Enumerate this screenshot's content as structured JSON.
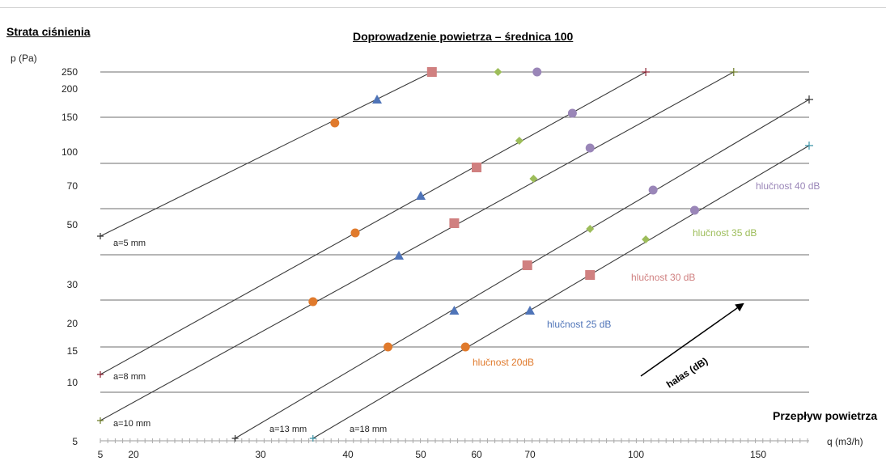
{
  "section_title": "Strata ciśnienia",
  "colors": {
    "ref_line": "#3a3a3a",
    "grid": "#6e6e6e",
    "triangle": "#4f74b8",
    "circle_orange": "#e07a2c",
    "square": "#d08080",
    "diamond": "#9dbd5a",
    "circle_purple": "#9a86b8",
    "cross_dark_red": "#8b2232",
    "cross_green": "#6e7d2a",
    "cross_dark": "#333333",
    "cross_teal": "#3a93a6"
  },
  "chart_data": {
    "type": "line",
    "title": "Doprowadzenie powietrza – średnica 100",
    "ylabel": "p (Pa)",
    "xlabel": "Przepływ powietrza",
    "xunit": "q (m3/h)",
    "x_ticks": [
      5,
      20,
      30,
      40,
      50,
      60,
      70,
      100,
      150
    ],
    "y_ticks": [
      5,
      10,
      15,
      20,
      30,
      50,
      70,
      100,
      150,
      200,
      250
    ],
    "grid_y": [
      5,
      10,
      15,
      20,
      30,
      50,
      70,
      100,
      150,
      250
    ],
    "lines": [
      {
        "label": "a=5 mm",
        "start": {
          "q": 5,
          "p": 43
        },
        "end": {
          "q": 52,
          "p": 250
        }
      },
      {
        "label": "a=8 mm",
        "start": {
          "q": 5,
          "p": 11
        },
        "end": {
          "q": 104,
          "p": 250
        }
      },
      {
        "label": "a=10 mm",
        "start": {
          "q": 5,
          "p": 6.5
        },
        "end": {
          "q": 140,
          "p": 250
        }
      },
      {
        "label": "a=13 mm",
        "start": {
          "q": 28,
          "p": 5
        },
        "end": {
          "q": 175,
          "p": 175
        }
      },
      {
        "label": "a=18 mm",
        "start": {
          "q": 36,
          "p": 5
        },
        "end": {
          "q": 175,
          "p": 112
        }
      }
    ],
    "end_markers": [
      {
        "line": "a=8 mm",
        "q": 104,
        "p": 250,
        "color": "cross_dark_red"
      },
      {
        "line": "a=10 mm",
        "q": 140,
        "p": 250,
        "color": "cross_green"
      },
      {
        "line": "a=13 mm",
        "q": 175,
        "p": 175,
        "color": "cross_dark"
      },
      {
        "line": "a=18 mm",
        "q": 175,
        "p": 112,
        "color": "cross_teal"
      }
    ],
    "series": [
      {
        "name": "hlučnost 20dB",
        "marker": "circle",
        "color": "circle_orange",
        "points": [
          {
            "q": 38.5,
            "p": 140
          },
          {
            "q": 41,
            "p": 44
          },
          {
            "q": 36,
            "p": 25
          },
          {
            "q": 45.5,
            "p": 15
          },
          {
            "q": 58,
            "p": 15
          }
        ]
      },
      {
        "name": "hlučnost 25 dB",
        "marker": "triangle",
        "color": "triangle",
        "points": [
          {
            "q": 44,
            "p": 180
          },
          {
            "q": 50,
            "p": 64
          },
          {
            "q": 47,
            "p": 36
          },
          {
            "q": 56,
            "p": 23
          },
          {
            "q": 70,
            "p": 23
          }
        ]
      },
      {
        "name": "hlučnost 30 dB",
        "marker": "square",
        "color": "square",
        "points": [
          {
            "q": 52,
            "p": 250
          },
          {
            "q": 60,
            "p": 87
          },
          {
            "q": 56,
            "p": 48
          },
          {
            "q": 69.5,
            "p": 34
          },
          {
            "q": 87,
            "p": 32
          }
        ]
      },
      {
        "name": "hlučnost 35 dB",
        "marker": "diamond",
        "color": "diamond",
        "points": [
          {
            "q": 64,
            "p": 250
          },
          {
            "q": 68,
            "p": 120
          },
          {
            "q": 71,
            "p": 80
          },
          {
            "q": 87,
            "p": 46
          },
          {
            "q": 104,
            "p": 42
          }
        ]
      },
      {
        "name": "hlučnost 40 dB",
        "marker": "circle",
        "color": "circle_purple",
        "points": [
          {
            "q": 72,
            "p": 250
          },
          {
            "q": 82,
            "p": 152
          },
          {
            "q": 87,
            "p": 110
          },
          {
            "q": 107,
            "p": 68
          },
          {
            "q": 124,
            "p": 53
          }
        ]
      }
    ],
    "noise_arrow_label": "hałas (dB)"
  }
}
